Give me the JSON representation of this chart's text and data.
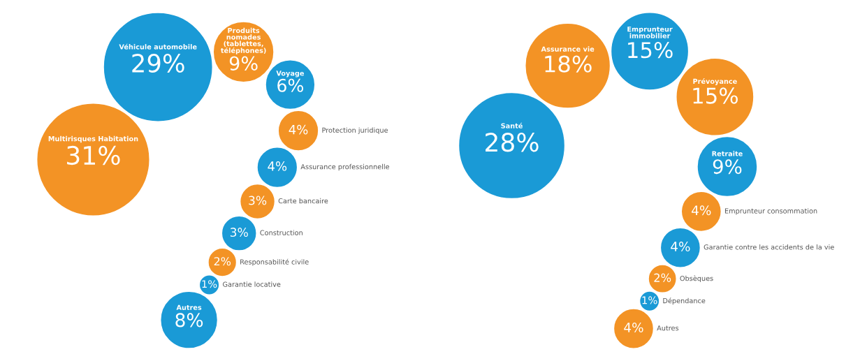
{
  "chart_data": [
    {
      "type": "other",
      "categories": [
        "Multirisques Habitation",
        "Véhicule automobile",
        "Produits nomades (tablettes, téléphones)",
        "Voyage",
        "Protection juridique",
        "Assurance professionnelle",
        "Carte bancaire",
        "Construction",
        "Responsabilité civile",
        "Garantie locative",
        "Autres"
      ],
      "values": [
        31,
        29,
        9,
        6,
        4,
        4,
        3,
        3,
        2,
        1,
        8
      ],
      "value_labels": [
        "31%",
        "29%",
        "9%",
        "6%",
        "4%",
        "4%",
        "3%",
        "3%",
        "2%",
        "1%",
        "8%"
      ],
      "colors": [
        "#f39325",
        "#1a9ad6",
        "#f39325",
        "#1a9ad6",
        "#f39325",
        "#1a9ad6",
        "#f39325",
        "#1a9ad6",
        "#f39325",
        "#1a9ad6",
        "#1a9ad6"
      ]
    },
    {
      "type": "other",
      "categories": [
        "Santé",
        "Assurance vie",
        "Emprunteur immobilier",
        "Prévoyance",
        "Retraite",
        "Emprunteur consommation",
        "Garantie contre les accidents de la vie",
        "Obsèques",
        "Dépendance",
        "Autres"
      ],
      "values": [
        28,
        18,
        15,
        15,
        9,
        4,
        4,
        2,
        1,
        4
      ],
      "value_labels": [
        "28%",
        "18%",
        "15%",
        "15%",
        "9%",
        "4%",
        "4%",
        "2%",
        "1%",
        "4%"
      ],
      "colors": [
        "#1a9ad6",
        "#f39325",
        "#1a9ad6",
        "#f39325",
        "#1a9ad6",
        "#f39325",
        "#1a9ad6",
        "#f39325",
        "#1a9ad6",
        "#f39325"
      ]
    }
  ]
}
